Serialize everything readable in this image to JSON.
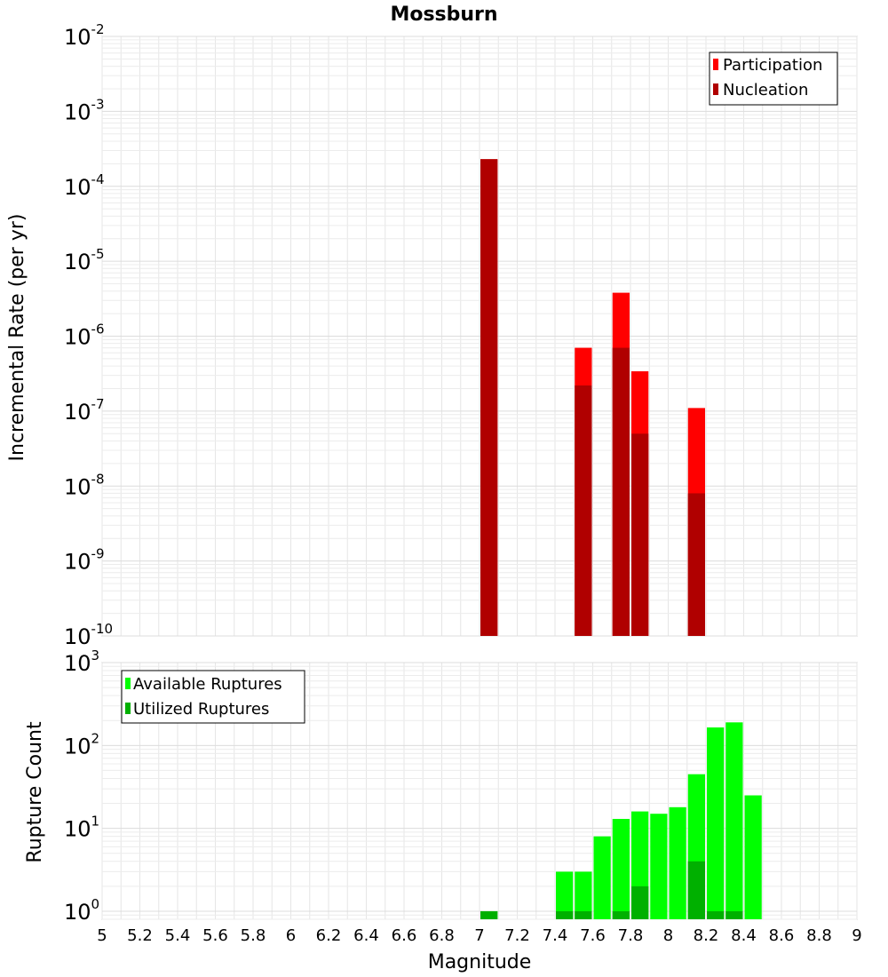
{
  "chart_data": [
    {
      "type": "bar",
      "title": "Mossburn",
      "xlabel": "",
      "ylabel": "Incremental Rate (per yr)",
      "yscale": "log",
      "ylim": [
        1e-10,
        0.01
      ],
      "xlim": [
        5,
        9
      ],
      "bar_width": 0.1,
      "y_tick_labels": [
        {
          "base": "10",
          "exp": "-10"
        },
        {
          "base": "10",
          "exp": "-9"
        },
        {
          "base": "10",
          "exp": "-8"
        },
        {
          "base": "10",
          "exp": "-7"
        },
        {
          "base": "10",
          "exp": "-6"
        },
        {
          "base": "10",
          "exp": "-5"
        },
        {
          "base": "10",
          "exp": "-4"
        },
        {
          "base": "10",
          "exp": "-3"
        },
        {
          "base": "10",
          "exp": "-2"
        }
      ],
      "grid": true,
      "legend_position": "top-right",
      "colors": {
        "Participation": "#ff0000",
        "Nucleation": "#b00000"
      },
      "series": [
        {
          "name": "Participation",
          "x": [
            7.05,
            7.55,
            7.75,
            7.85,
            8.15
          ],
          "values": [
            0.00023,
            7e-07,
            3.8e-06,
            3.4e-07,
            1.1e-07
          ]
        },
        {
          "name": "Nucleation",
          "x": [
            7.05,
            7.55,
            7.75,
            7.85,
            8.15
          ],
          "values": [
            0.00023,
            2.2e-07,
            7e-07,
            5e-08,
            8e-09
          ]
        }
      ]
    },
    {
      "type": "bar",
      "title": "",
      "xlabel": "Magnitude",
      "ylabel": "Rupture Count",
      "yscale": "log",
      "ylim": [
        0.8,
        1000
      ],
      "xlim": [
        5,
        9
      ],
      "bar_width": 0.1,
      "x_tick_labels": [
        "5",
        "5.2",
        "5.4",
        "5.6",
        "5.8",
        "6",
        "6.2",
        "6.4",
        "6.6",
        "6.8",
        "7",
        "7.2",
        "7.4",
        "7.6",
        "7.8",
        "8",
        "8.2",
        "8.4",
        "8.6",
        "8.8",
        "9"
      ],
      "y_tick_labels": [
        {
          "base": "10",
          "exp": "0"
        },
        {
          "base": "10",
          "exp": "1"
        },
        {
          "base": "10",
          "exp": "2"
        },
        {
          "base": "10",
          "exp": "3"
        }
      ],
      "grid": true,
      "legend_position": "top-left",
      "colors": {
        "Available Ruptures": "#00ff00",
        "Utilized Ruptures": "#00b000"
      },
      "series": [
        {
          "name": "Available Ruptures",
          "x": [
            7.05,
            7.45,
            7.55,
            7.65,
            7.75,
            7.85,
            7.95,
            8.05,
            8.15,
            8.25,
            8.35,
            8.45
          ],
          "values": [
            1,
            3,
            3,
            8,
            13,
            16,
            15,
            18,
            45,
            165,
            190,
            25
          ]
        },
        {
          "name": "Utilized Ruptures",
          "x": [
            7.05,
            7.45,
            7.55,
            7.75,
            7.85,
            8.15,
            8.25,
            8.35
          ],
          "values": [
            1,
            1,
            1,
            1,
            2,
            4,
            1,
            1
          ]
        }
      ]
    }
  ]
}
